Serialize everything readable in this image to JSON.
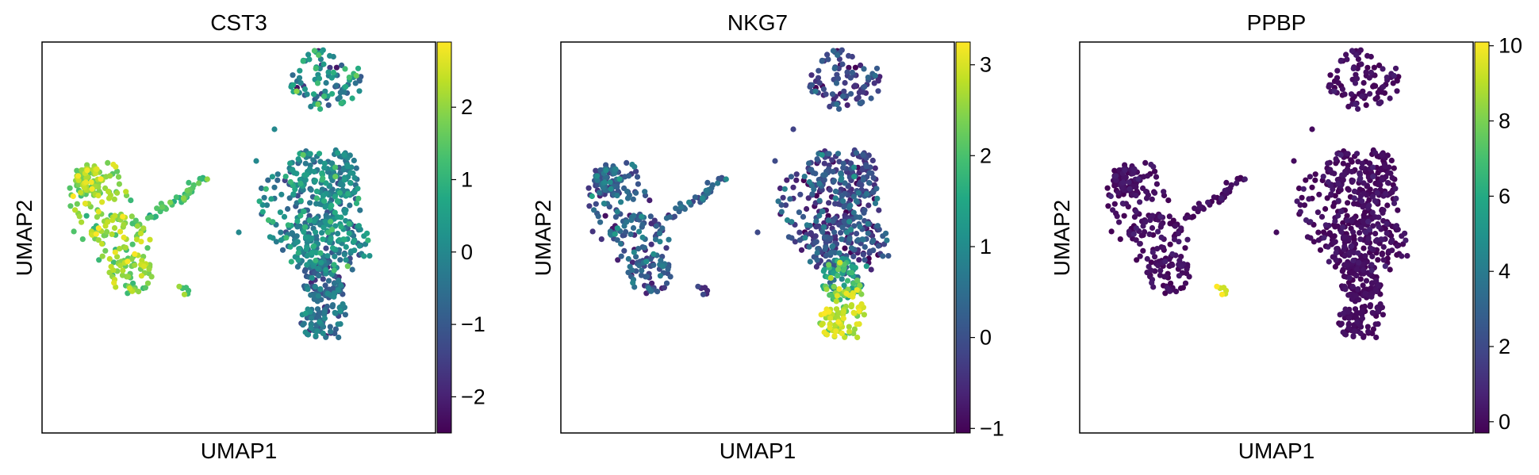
{
  "chart_data": [
    {
      "type": "scatter",
      "title": "CST3",
      "xlabel": "UMAP1",
      "ylabel": "UMAP2",
      "colormap": "viridis",
      "colorbar": {
        "vmin": -2.5,
        "vmax": 2.9,
        "ticks": [
          -2,
          -1,
          0,
          1,
          2
        ],
        "tick_labels": [
          "−2",
          "−1",
          "0",
          "1",
          "2"
        ]
      },
      "x_ticks": "none",
      "y_ticks": "none",
      "clusters": [
        {
          "group": "top",
          "value_mean": 0.0,
          "value_spread": 0.9
        },
        {
          "group": "right_main",
          "value_mean": 0.0,
          "value_spread": 0.6
        },
        {
          "group": "right_tail",
          "value_mean": -0.8,
          "value_spread": 0.6
        },
        {
          "group": "right_bottom",
          "value_mean": -0.5,
          "value_spread": 0.6
        },
        {
          "group": "left_blob",
          "value_mean": 1.9,
          "value_spread": 0.5
        },
        {
          "group": "left_arm",
          "value_mean": 1.3,
          "value_spread": 0.4
        },
        {
          "group": "small",
          "value_mean": 1.5,
          "value_spread": 0.4
        }
      ]
    },
    {
      "type": "scatter",
      "title": "NKG7",
      "xlabel": "UMAP1",
      "ylabel": "UMAP2",
      "colormap": "viridis",
      "colorbar": {
        "vmin": -1.05,
        "vmax": 3.25,
        "ticks": [
          -1,
          0,
          1,
          2,
          3
        ],
        "tick_labels": [
          "−1",
          "0",
          "1",
          "2",
          "3"
        ]
      },
      "x_ticks": "none",
      "y_ticks": "none",
      "clusters": [
        {
          "group": "top",
          "value_mean": -0.2,
          "value_spread": 0.4
        },
        {
          "group": "right_main",
          "value_mean": -0.1,
          "value_spread": 0.5
        },
        {
          "group": "right_tail",
          "value_mean": 1.6,
          "value_spread": 0.7
        },
        {
          "group": "right_bottom",
          "value_mean": 2.8,
          "value_spread": 0.35
        },
        {
          "group": "left_blob",
          "value_mean": 0.1,
          "value_spread": 0.5
        },
        {
          "group": "left_arm",
          "value_mean": 0.3,
          "value_spread": 0.4
        },
        {
          "group": "small",
          "value_mean": -0.4,
          "value_spread": 0.2
        }
      ]
    },
    {
      "type": "scatter",
      "title": "PPBP",
      "xlabel": "UMAP1",
      "ylabel": "UMAP2",
      "colormap": "viridis",
      "colorbar": {
        "vmin": -0.3,
        "vmax": 10.1,
        "ticks": [
          0,
          2,
          4,
          6,
          8,
          10
        ],
        "tick_labels": [
          "0",
          "2",
          "4",
          "6",
          "8",
          "10"
        ]
      },
      "x_ticks": "none",
      "y_ticks": "none",
      "clusters": [
        {
          "group": "top",
          "value_mean": 0.0,
          "value_spread": 0.3
        },
        {
          "group": "right_main",
          "value_mean": 0.0,
          "value_spread": 0.3
        },
        {
          "group": "right_tail",
          "value_mean": 0.0,
          "value_spread": 0.2
        },
        {
          "group": "right_bottom",
          "value_mean": 0.0,
          "value_spread": 0.2
        },
        {
          "group": "left_blob",
          "value_mean": 0.0,
          "value_spread": 0.3
        },
        {
          "group": "left_arm",
          "value_mean": 0.0,
          "value_spread": 0.3
        },
        {
          "group": "small",
          "value_mean": 9.6,
          "value_spread": 0.4
        }
      ]
    }
  ]
}
